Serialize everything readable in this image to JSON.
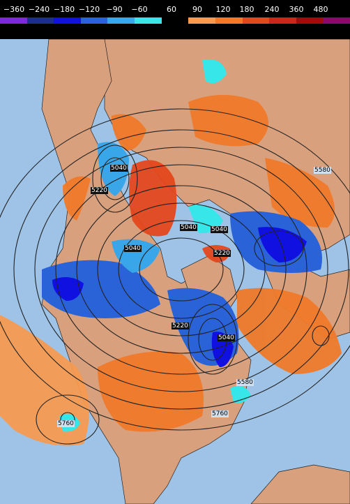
{
  "legend": {
    "ticks": [
      "−360",
      "−240",
      "−180",
      "−120",
      "−90",
      "−60",
      "60",
      "90",
      "120",
      "180",
      "240",
      "360",
      "480"
    ],
    "colors": [
      "#7a2bd6",
      "#1b2f8a",
      "#1010e0",
      "#2a62d8",
      "#38a6e8",
      "#36e6e8",
      "#000000",
      "#f59a50",
      "#f07a2a",
      "#e4471d",
      "#cf2419",
      "#a00b0b",
      "#8a0a6a"
    ]
  },
  "map": {
    "contour_labels": [
      "5040",
      "5220",
      "5040",
      "5040",
      "5220",
      "5040",
      "5040",
      "5220",
      "5580",
      "5580",
      "5760",
      "5760"
    ],
    "colors": {
      "ocean": "#9fc3e6",
      "land": "#d9a07e",
      "warm": "#f07a2a",
      "cold": "#1e3fe0"
    }
  }
}
